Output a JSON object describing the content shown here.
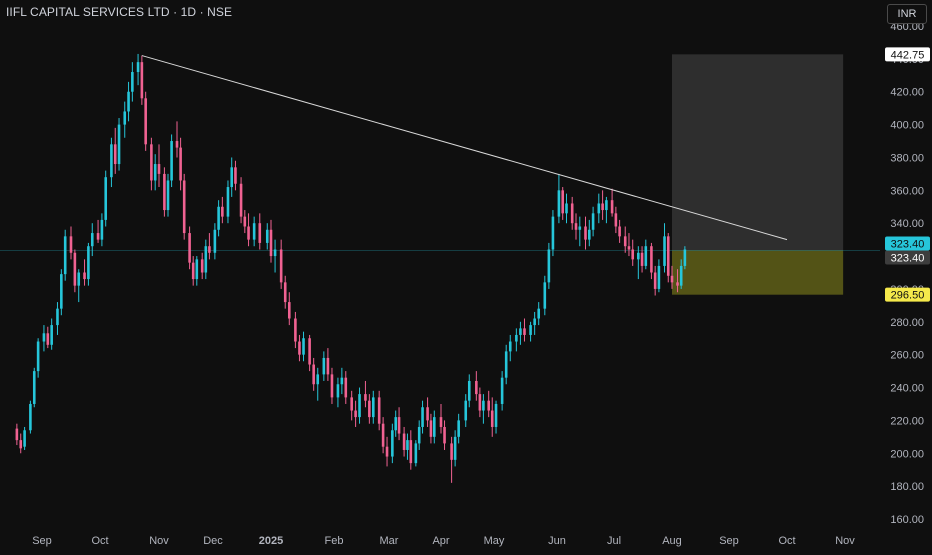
{
  "header": {
    "title": "IIFL CAPITAL SERVICES LTD · 1D · NSE",
    "currency": "INR"
  },
  "colors": {
    "background": "#0f0f0f",
    "up": "#26c6da",
    "down": "#f06292",
    "axis_text": "#b2b5be",
    "trendline": "#d9d9d9",
    "target_zone": "#3a3a3a",
    "entry_zone": "#6b6b1a",
    "last_price_label": "#26c6da",
    "support_label": "#f5e94b"
  },
  "chart_data": {
    "type": "candlestick",
    "x_ticks": [
      "Sep",
      "Oct",
      "Nov",
      "Dec",
      "2025",
      "Feb",
      "Mar",
      "Apr",
      "May",
      "Jun",
      "Jul",
      "Aug",
      "Sep",
      "Oct",
      "Nov"
    ],
    "y_ticks": [
      "460.00",
      "440.00",
      "420.00",
      "400.00",
      "380.00",
      "360.00",
      "340.00",
      "320.00",
      "300.00",
      "280.00",
      "260.00",
      "240.00",
      "220.00",
      "200.00",
      "180.00",
      "160.00"
    ],
    "ylim": [
      155,
      463
    ],
    "grid": false,
    "price_labels": [
      "442.75",
      "323.40",
      "323.40",
      "296.50"
    ],
    "trendline": {
      "from": [
        "2024-10-23",
        442
      ],
      "to": [
        "2025-10-01",
        330
      ]
    },
    "target_zone": {
      "from": "2025-08-01",
      "to": "2025-10-31",
      "low": 323.4,
      "high": 442.75
    },
    "entry_zone": {
      "from": "2025-08-01",
      "to": "2025-10-31",
      "low": 296.5,
      "high": 323.4
    },
    "candles": [
      [
        "2024-08-19",
        215,
        218,
        205,
        208
      ],
      [
        "2024-08-21",
        208,
        212,
        200,
        203
      ],
      [
        "2024-08-23",
        204,
        216,
        202,
        214
      ],
      [
        "2024-08-26",
        214,
        232,
        212,
        230
      ],
      [
        "2024-08-28",
        230,
        252,
        228,
        250
      ],
      [
        "2024-08-30",
        250,
        270,
        246,
        268
      ],
      [
        "2024-09-02",
        268,
        278,
        262,
        273
      ],
      [
        "2024-09-04",
        273,
        277,
        264,
        266
      ],
      [
        "2024-09-06",
        266,
        282,
        263,
        278
      ],
      [
        "2024-09-09",
        278,
        292,
        272,
        288
      ],
      [
        "2024-09-11",
        288,
        312,
        284,
        309
      ],
      [
        "2024-09-13",
        309,
        336,
        305,
        332
      ],
      [
        "2024-09-16",
        332,
        338,
        318,
        322
      ],
      [
        "2024-09-18",
        322,
        324,
        298,
        302
      ],
      [
        "2024-09-20",
        302,
        312,
        292,
        310
      ],
      [
        "2024-09-23",
        310,
        318,
        302,
        306
      ],
      [
        "2024-09-25",
        306,
        328,
        302,
        326
      ],
      [
        "2024-09-27",
        326,
        340,
        320,
        334
      ],
      [
        "2024-09-30",
        334,
        342,
        328,
        330
      ],
      [
        "2024-10-02",
        330,
        346,
        326,
        342
      ],
      [
        "2024-10-04",
        342,
        372,
        338,
        368
      ],
      [
        "2024-10-07",
        368,
        392,
        362,
        388
      ],
      [
        "2024-10-09",
        388,
        398,
        370,
        376
      ],
      [
        "2024-10-11",
        376,
        404,
        372,
        400
      ],
      [
        "2024-10-14",
        400,
        414,
        392,
        408
      ],
      [
        "2024-10-16",
        408,
        426,
        402,
        420
      ],
      [
        "2024-10-18",
        420,
        438,
        414,
        432
      ],
      [
        "2024-10-21",
        432,
        443,
        424,
        438
      ],
      [
        "2024-10-23",
        438,
        442,
        412,
        416
      ],
      [
        "2024-10-25",
        416,
        420,
        384,
        388
      ],
      [
        "2024-10-28",
        388,
        392,
        360,
        366
      ],
      [
        "2024-10-30",
        366,
        382,
        360,
        376
      ],
      [
        "2024-11-01",
        376,
        388,
        362,
        370
      ],
      [
        "2024-11-04",
        370,
        374,
        344,
        348
      ],
      [
        "2024-11-06",
        348,
        370,
        344,
        366
      ],
      [
        "2024-11-08",
        366,
        394,
        362,
        390
      ],
      [
        "2024-11-11",
        390,
        402,
        380,
        386
      ],
      [
        "2024-11-13",
        386,
        392,
        360,
        366
      ],
      [
        "2024-11-15",
        366,
        370,
        330,
        334
      ],
      [
        "2024-11-18",
        334,
        338,
        312,
        316
      ],
      [
        "2024-11-20",
        316,
        320,
        302,
        306
      ],
      [
        "2024-11-22",
        306,
        320,
        302,
        318
      ],
      [
        "2024-11-25",
        318,
        322,
        306,
        310
      ],
      [
        "2024-11-27",
        310,
        330,
        306,
        326
      ],
      [
        "2024-11-29",
        326,
        334,
        318,
        322
      ],
      [
        "2024-12-02",
        322,
        340,
        318,
        336
      ],
      [
        "2024-12-04",
        336,
        354,
        332,
        350
      ],
      [
        "2024-12-06",
        350,
        356,
        340,
        344
      ],
      [
        "2024-12-09",
        344,
        366,
        340,
        362
      ],
      [
        "2024-12-11",
        362,
        380,
        356,
        374
      ],
      [
        "2024-12-13",
        374,
        378,
        360,
        364
      ],
      [
        "2024-12-16",
        364,
        368,
        340,
        344
      ],
      [
        "2024-12-18",
        344,
        348,
        334,
        338
      ],
      [
        "2024-12-20",
        338,
        346,
        326,
        330
      ],
      [
        "2024-12-23",
        330,
        344,
        326,
        340
      ],
      [
        "2024-12-26",
        340,
        346,
        324,
        328
      ],
      [
        "2024-12-30",
        328,
        340,
        324,
        336
      ],
      [
        "2025-01-01",
        336,
        342,
        316,
        320
      ],
      [
        "2025-01-03",
        320,
        330,
        310,
        324
      ],
      [
        "2025-01-06",
        324,
        330,
        300,
        304
      ],
      [
        "2025-01-08",
        304,
        308,
        288,
        292
      ],
      [
        "2025-01-10",
        292,
        298,
        278,
        282
      ],
      [
        "2025-01-13",
        282,
        286,
        264,
        268
      ],
      [
        "2025-01-15",
        268,
        272,
        256,
        260
      ],
      [
        "2025-01-17",
        260,
        274,
        256,
        270
      ],
      [
        "2025-01-20",
        270,
        272,
        250,
        254
      ],
      [
        "2025-01-22",
        254,
        258,
        238,
        242
      ],
      [
        "2025-01-24",
        242,
        252,
        232,
        248
      ],
      [
        "2025-01-27",
        248,
        262,
        244,
        258
      ],
      [
        "2025-01-29",
        258,
        264,
        244,
        248
      ],
      [
        "2025-01-31",
        248,
        252,
        230,
        234
      ],
      [
        "2025-02-03",
        234,
        246,
        228,
        242
      ],
      [
        "2025-02-05",
        242,
        252,
        236,
        246
      ],
      [
        "2025-02-07",
        246,
        250,
        230,
        234
      ],
      [
        "2025-02-10",
        234,
        238,
        220,
        226
      ],
      [
        "2025-02-12",
        226,
        232,
        216,
        222
      ],
      [
        "2025-02-14",
        222,
        240,
        218,
        236
      ],
      [
        "2025-02-17",
        236,
        244,
        228,
        232
      ],
      [
        "2025-02-19",
        232,
        236,
        218,
        222
      ],
      [
        "2025-02-21",
        222,
        238,
        218,
        234
      ],
      [
        "2025-02-24",
        234,
        238,
        214,
        218
      ],
      [
        "2025-02-26",
        218,
        222,
        200,
        204
      ],
      [
        "2025-02-28",
        204,
        210,
        192,
        198
      ],
      [
        "2025-03-03",
        198,
        218,
        194,
        214
      ],
      [
        "2025-03-05",
        214,
        226,
        210,
        222
      ],
      [
        "2025-03-07",
        222,
        228,
        208,
        212
      ],
      [
        "2025-03-10",
        212,
        216,
        198,
        202
      ],
      [
        "2025-03-12",
        202,
        212,
        196,
        208
      ],
      [
        "2025-03-14",
        208,
        214,
        190,
        194
      ],
      [
        "2025-03-17",
        194,
        208,
        192,
        206
      ],
      [
        "2025-03-19",
        206,
        220,
        202,
        216
      ],
      [
        "2025-03-21",
        216,
        232,
        212,
        228
      ],
      [
        "2025-03-24",
        228,
        234,
        216,
        220
      ],
      [
        "2025-03-26",
        220,
        224,
        206,
        210
      ],
      [
        "2025-03-28",
        210,
        226,
        206,
        222
      ],
      [
        "2025-04-01",
        222,
        230,
        212,
        216
      ],
      [
        "2025-04-03",
        216,
        220,
        202,
        206
      ],
      [
        "2025-04-07",
        206,
        210,
        182,
        196
      ],
      [
        "2025-04-09",
        196,
        214,
        192,
        210
      ],
      [
        "2025-04-11",
        210,
        224,
        206,
        220
      ],
      [
        "2025-04-15",
        220,
        236,
        216,
        232
      ],
      [
        "2025-04-17",
        232,
        248,
        228,
        244
      ],
      [
        "2025-04-21",
        244,
        250,
        232,
        236
      ],
      [
        "2025-04-23",
        236,
        240,
        222,
        226
      ],
      [
        "2025-04-25",
        226,
        236,
        218,
        232
      ],
      [
        "2025-04-28",
        232,
        238,
        222,
        226
      ],
      [
        "2025-04-30",
        226,
        234,
        210,
        216
      ],
      [
        "2025-05-02",
        216,
        232,
        212,
        230
      ],
      [
        "2025-05-05",
        230,
        250,
        226,
        246
      ],
      [
        "2025-05-07",
        246,
        266,
        242,
        262
      ],
      [
        "2025-05-09",
        262,
        272,
        256,
        268
      ],
      [
        "2025-05-12",
        268,
        276,
        262,
        272
      ],
      [
        "2025-05-14",
        272,
        280,
        266,
        276
      ],
      [
        "2025-05-16",
        276,
        282,
        268,
        272
      ],
      [
        "2025-05-19",
        272,
        280,
        268,
        278
      ],
      [
        "2025-05-21",
        278,
        286,
        272,
        282
      ],
      [
        "2025-05-23",
        282,
        292,
        278,
        288
      ],
      [
        "2025-05-26",
        288,
        308,
        284,
        304
      ],
      [
        "2025-05-28",
        304,
        328,
        300,
        324
      ],
      [
        "2025-05-30",
        324,
        348,
        320,
        344
      ],
      [
        "2025-06-02",
        344,
        370,
        340,
        360
      ],
      [
        "2025-06-04",
        360,
        362,
        342,
        346
      ],
      [
        "2025-06-06",
        346,
        358,
        340,
        352
      ],
      [
        "2025-06-09",
        352,
        356,
        336,
        340
      ],
      [
        "2025-06-11",
        340,
        346,
        330,
        336
      ],
      [
        "2025-06-13",
        336,
        344,
        326,
        338
      ],
      [
        "2025-06-16",
        338,
        344,
        324,
        330
      ],
      [
        "2025-06-18",
        330,
        342,
        326,
        336
      ],
      [
        "2025-06-20",
        336,
        350,
        332,
        346
      ],
      [
        "2025-06-23",
        346,
        358,
        340,
        352
      ],
      [
        "2025-06-25",
        352,
        360,
        342,
        348
      ],
      [
        "2025-06-27",
        348,
        356,
        340,
        354
      ],
      [
        "2025-06-30",
        354,
        361,
        344,
        346
      ],
      [
        "2025-07-02",
        346,
        350,
        334,
        338
      ],
      [
        "2025-07-04",
        338,
        342,
        328,
        332
      ],
      [
        "2025-07-07",
        332,
        338,
        322,
        326
      ],
      [
        "2025-07-09",
        326,
        334,
        320,
        324
      ],
      [
        "2025-07-11",
        324,
        330,
        314,
        318
      ],
      [
        "2025-07-14",
        318,
        326,
        306,
        322
      ],
      [
        "2025-07-16",
        322,
        326,
        310,
        314
      ],
      [
        "2025-07-18",
        314,
        330,
        312,
        326
      ],
      [
        "2025-07-21",
        326,
        328,
        306,
        310
      ],
      [
        "2025-07-23",
        310,
        314,
        296,
        300
      ],
      [
        "2025-07-25",
        300,
        318,
        298,
        314
      ],
      [
        "2025-07-28",
        314,
        340,
        310,
        332
      ],
      [
        "2025-07-30",
        332,
        334,
        304,
        308
      ],
      [
        "2025-08-01",
        308,
        314,
        300,
        304
      ],
      [
        "2025-08-04",
        304,
        312,
        298,
        302
      ],
      [
        "2025-08-06",
        302,
        318,
        300,
        314
      ],
      [
        "2025-08-08",
        314,
        326,
        312,
        324
      ]
    ]
  }
}
